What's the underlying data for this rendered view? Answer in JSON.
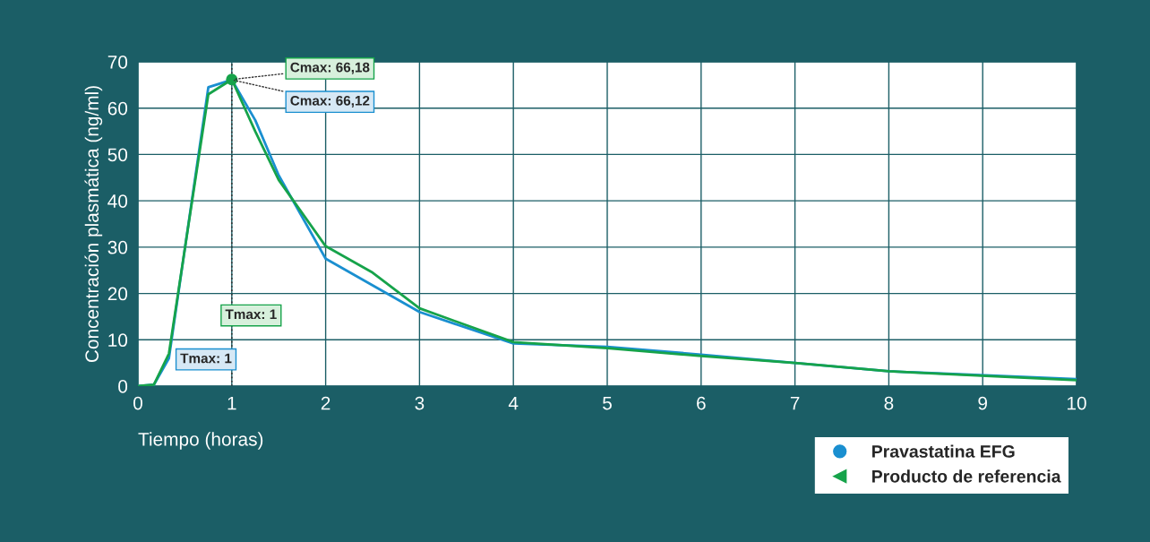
{
  "chart_data": {
    "type": "line",
    "xlabel": "Tiempo (horas)",
    "ylabel": "Concentración plasmática (ng/ml)",
    "xlim": [
      0,
      10
    ],
    "xticks": [
      0,
      1,
      2,
      3,
      4,
      5,
      6,
      7,
      8,
      9,
      10
    ],
    "ylim": [
      0,
      70
    ],
    "yticks": [
      0,
      10,
      20,
      30,
      40,
      50,
      60,
      70
    ],
    "grid": true,
    "legend": "bottom right",
    "line_style": "solid",
    "series": [
      {
        "name": "Pravastatina EFG",
        "color": "#1a8fd0",
        "x": [
          0,
          0.17,
          0.33,
          0.75,
          1,
          1.25,
          1.5,
          2,
          3,
          4,
          5,
          6,
          7,
          8,
          10
        ],
        "values": [
          0,
          0.3,
          6,
          64.5,
          66.12,
          57.4,
          45.5,
          27.5,
          16,
          9.2,
          8.5,
          6.8,
          5,
          3.2,
          1.5
        ]
      },
      {
        "name": "Producto de referencia",
        "color": "#16a34a",
        "x": [
          0,
          0.17,
          0.33,
          0.75,
          1,
          1.25,
          1.5,
          2,
          2.5,
          3,
          4,
          5,
          6,
          7,
          8,
          10
        ],
        "values": [
          0,
          0.3,
          7,
          63,
          66.18,
          55,
          44.5,
          30.2,
          24.5,
          16.8,
          9.5,
          8.2,
          6.5,
          5,
          3.2,
          1.3
        ]
      },
      {
        "type": "scatter",
        "color": "#16a34a",
        "marker": "circle",
        "x": [
          1
        ],
        "values": [
          66.18
        ]
      }
    ],
    "ref_lines": [
      {
        "axis": "x",
        "value": 1,
        "line_style": "dotted",
        "color": "#333333"
      }
    ],
    "annotations": [
      {
        "text": "Cmax: 66,18",
        "x": 1,
        "y": 66.18
      },
      {
        "text": "Cmax: 66,12",
        "x": 1,
        "y": 66.12
      },
      "Tmax: 1",
      "Tmax: 1"
    ]
  }
}
